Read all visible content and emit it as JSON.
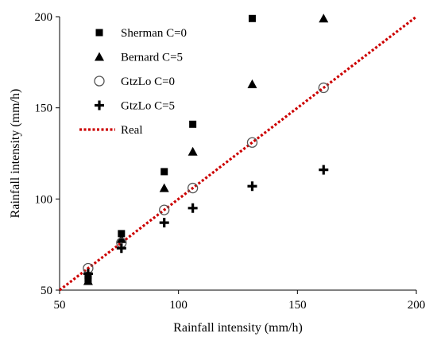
{
  "chart_data": {
    "type": "scatter",
    "xlabel": "Rainfall intensity (mm/h)",
    "ylabel": "Rainfall intensity (mm/h)",
    "xlim": [
      50,
      200
    ],
    "ylim": [
      50,
      200
    ],
    "xticks": [
      50,
      100,
      150,
      200
    ],
    "yticks": [
      50,
      100,
      150,
      200
    ],
    "grid": false,
    "legend_position": "top-left",
    "series": [
      {
        "name": "Sherman C=0",
        "marker": "square",
        "color": "#000000",
        "points": [
          {
            "x": 62,
            "y": 56
          },
          {
            "x": 62,
            "y": 58
          },
          {
            "x": 76,
            "y": 81
          },
          {
            "x": 94,
            "y": 115
          },
          {
            "x": 106,
            "y": 141
          },
          {
            "x": 131,
            "y": 199
          }
        ]
      },
      {
        "name": "Bernard C=5",
        "marker": "triangle",
        "color": "#000000",
        "points": [
          {
            "x": 62,
            "y": 55
          },
          {
            "x": 76,
            "y": 78
          },
          {
            "x": 94,
            "y": 106
          },
          {
            "x": 106,
            "y": 126
          },
          {
            "x": 131,
            "y": 163
          },
          {
            "x": 161,
            "y": 199
          }
        ]
      },
      {
        "name": "GtzLo C=0",
        "marker": "circle-open",
        "color": "#000000",
        "points": [
          {
            "x": 62,
            "y": 62
          },
          {
            "x": 76,
            "y": 76
          },
          {
            "x": 94,
            "y": 94
          },
          {
            "x": 106,
            "y": 106
          },
          {
            "x": 131,
            "y": 131
          },
          {
            "x": 161,
            "y": 161
          }
        ]
      },
      {
        "name": "GtzLo C=5",
        "marker": "plus",
        "color": "#000000",
        "points": [
          {
            "x": 62,
            "y": 59
          },
          {
            "x": 76,
            "y": 73
          },
          {
            "x": 94,
            "y": 87
          },
          {
            "x": 106,
            "y": 95
          },
          {
            "x": 131,
            "y": 107
          },
          {
            "x": 161,
            "y": 116
          }
        ]
      },
      {
        "name": "Real",
        "marker": "dotted-line",
        "color": "#cc0000",
        "points": [
          {
            "x": 50,
            "y": 50
          },
          {
            "x": 200,
            "y": 200
          }
        ]
      }
    ]
  }
}
